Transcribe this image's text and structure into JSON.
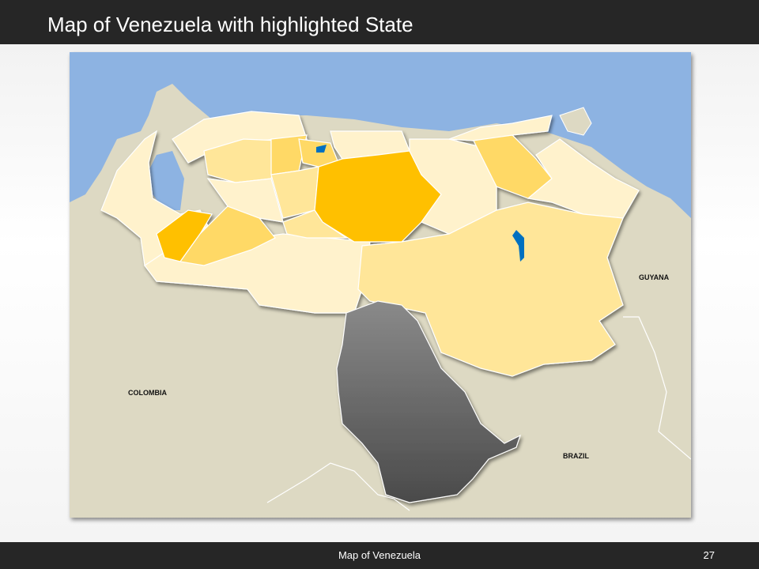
{
  "header": {
    "title": "Map of Venezuela with highlighted State"
  },
  "map": {
    "country": "Venezuela",
    "highlighted_state": "Amazonas",
    "labels": {
      "guyana": "GUYANA",
      "colombia": "COLOMBIA",
      "brazil": "BRAZIL"
    },
    "colors": {
      "ocean": "#8db3e2",
      "land": "#ddd9c3",
      "state_light": "#fff2cc",
      "state_mid": "#ffe699",
      "state_dark": "#ffd966",
      "state_accent": "#ffc000",
      "highlight": "#595959",
      "lake": "#0070c0"
    }
  },
  "footer": {
    "title": "Map of Venezuela",
    "page": "27"
  }
}
